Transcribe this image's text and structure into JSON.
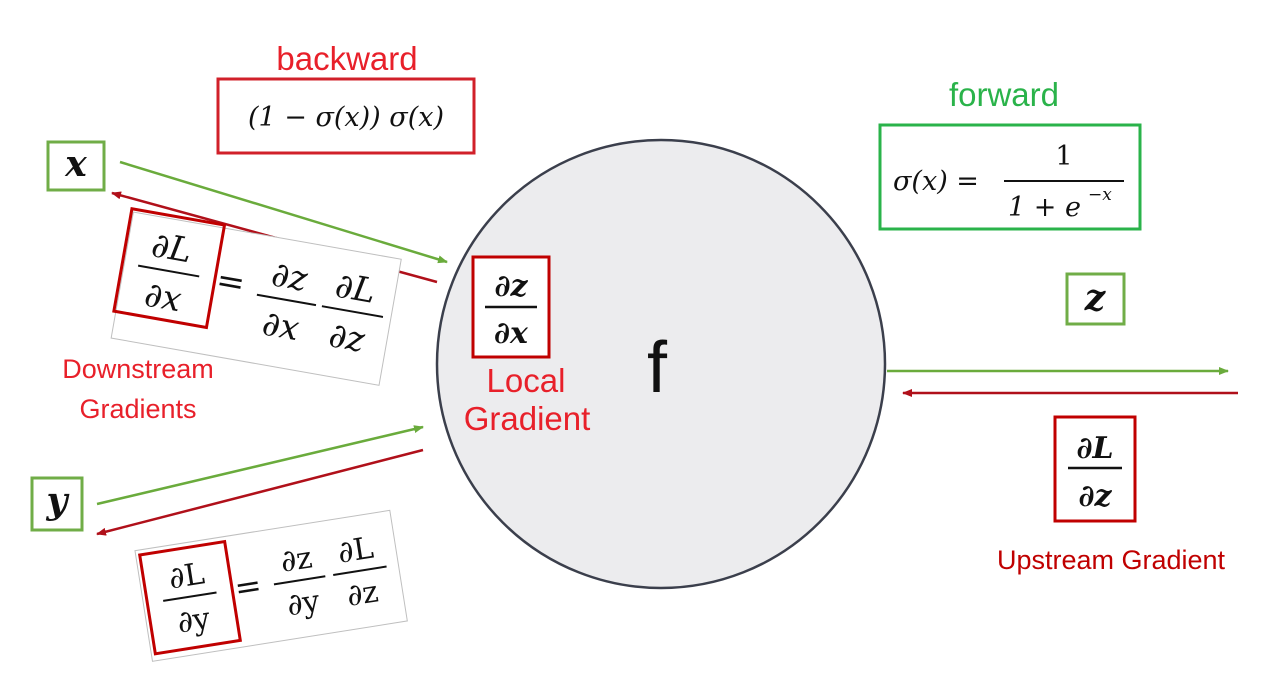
{
  "labels": {
    "backward": "backward",
    "forward": "forward",
    "node": "f",
    "local_gradient_1": "Local",
    "local_gradient_2": "Gradient",
    "downstream_1": "Downstream",
    "downstream_2": "Gradients",
    "upstream": "Upstream Gradient"
  },
  "math": {
    "x": "x",
    "y": "y",
    "z": "z",
    "backward_formula": "(1 − σ(x)) σ(x)",
    "forward_lhs": "σ(x) =",
    "forward_num": "1",
    "forward_den": "1 + e",
    "forward_den_exp": "−x",
    "local_num": "∂z",
    "local_den": "∂x",
    "upstream_num": "∂L",
    "upstream_den": "∂z",
    "dx_lhs_num": "∂L",
    "dx_lhs_den": "∂x",
    "dx_eq": "=",
    "dx_r1_num": "∂z",
    "dx_r1_den": "∂x",
    "dx_r2_num": "∂L",
    "dx_r2_den": "∂z",
    "dy_lhs_num": "∂L",
    "dy_lhs_den": "∂y",
    "dy_eq": "=",
    "dy_r1_num": "∂z",
    "dy_r1_den": "∂y",
    "dy_r2_num": "∂L",
    "dy_r2_den": "∂z"
  },
  "colors": {
    "red": "#e8202a",
    "dark_red": "#c00000",
    "green": "#2ab34a",
    "arrow_green": "#6aab3c",
    "arrow_red": "#b0101a",
    "box_green": "#70ad47",
    "circle_fill": "#ececee",
    "circle_stroke": "#3b3f4c"
  }
}
